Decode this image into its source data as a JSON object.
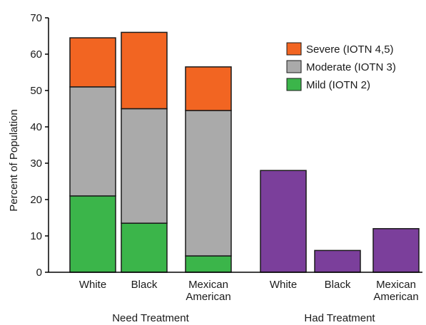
{
  "chart_data": {
    "type": "bar",
    "stacked": true,
    "ylabel": "Percent of Population",
    "ylim": [
      0,
      70
    ],
    "yticks": [
      0,
      10,
      20,
      30,
      40,
      50,
      60,
      70
    ],
    "grid": false,
    "legend_position": "top-right",
    "groups": [
      {
        "label": "Need Treatment",
        "categories": [
          "White",
          "Black",
          "Mexican American"
        ],
        "series": [
          {
            "name": "Mild (IOTN 2)",
            "color": "#3bb54a",
            "values": [
              21,
              13.5,
              4.5
            ]
          },
          {
            "name": "Moderate (IOTN 3)",
            "color": "#aaaaaa",
            "values": [
              30,
              31.5,
              40
            ]
          },
          {
            "name": "Severe (IOTN 4,5)",
            "color": "#f26522",
            "values": [
              13.5,
              21,
              12
            ]
          }
        ]
      },
      {
        "label": "Had Treatment",
        "categories": [
          "White",
          "Black",
          "Mexican American"
        ],
        "series": [
          {
            "name": "",
            "color": "#7b3f9b",
            "values": [
              28,
              6,
              12
            ]
          }
        ]
      }
    ],
    "legend": [
      {
        "label": "Severe (IOTN 4,5)",
        "color": "#f26522"
      },
      {
        "label": "Moderate (IOTN 3)",
        "color": "#aaaaaa"
      },
      {
        "label": "Mild (IOTN 2)",
        "color": "#3bb54a"
      }
    ]
  }
}
